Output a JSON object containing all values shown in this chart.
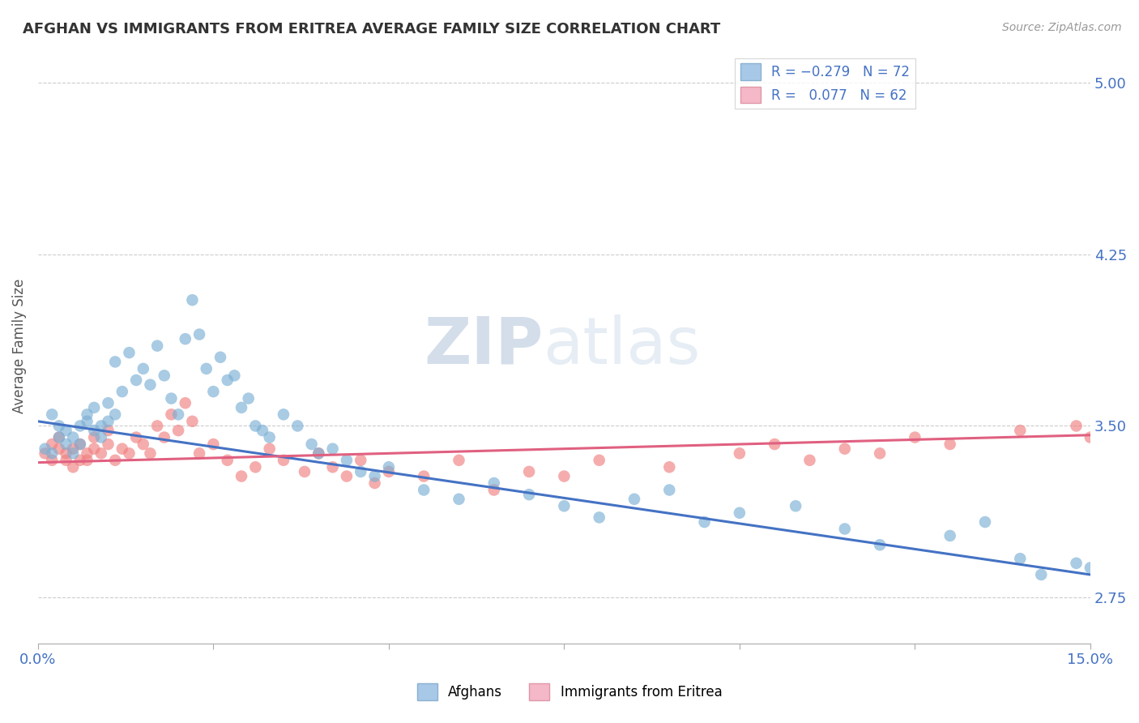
{
  "title": "AFGHAN VS IMMIGRANTS FROM ERITREA AVERAGE FAMILY SIZE CORRELATION CHART",
  "source": "Source: ZipAtlas.com",
  "ylabel": "Average Family Size",
  "xlim": [
    0.0,
    0.15
  ],
  "ylim": [
    2.55,
    5.15
  ],
  "yticks": [
    2.75,
    3.5,
    4.25,
    5.0
  ],
  "background_color": "#ffffff",
  "grid_color": "#cccccc",
  "afghans_color": "#7bafd4",
  "eritrea_color": "#f08080",
  "afghans_line_color": "#4472c4",
  "eritrea_line_color": "#e06080",
  "afghans_x": [
    0.001,
    0.002,
    0.002,
    0.003,
    0.003,
    0.004,
    0.004,
    0.005,
    0.005,
    0.006,
    0.006,
    0.007,
    0.007,
    0.008,
    0.008,
    0.009,
    0.009,
    0.01,
    0.01,
    0.011,
    0.011,
    0.012,
    0.013,
    0.014,
    0.015,
    0.016,
    0.017,
    0.018,
    0.019,
    0.02,
    0.021,
    0.022,
    0.023,
    0.024,
    0.025,
    0.026,
    0.027,
    0.028,
    0.029,
    0.03,
    0.031,
    0.032,
    0.033,
    0.035,
    0.037,
    0.039,
    0.04,
    0.042,
    0.044,
    0.046,
    0.048,
    0.05,
    0.055,
    0.06,
    0.065,
    0.07,
    0.075,
    0.08,
    0.085,
    0.09,
    0.095,
    0.1,
    0.108,
    0.115,
    0.12,
    0.13,
    0.135,
    0.14,
    0.143,
    0.148,
    0.15,
    0.152
  ],
  "afghans_y": [
    3.4,
    3.38,
    3.55,
    3.45,
    3.5,
    3.42,
    3.48,
    3.38,
    3.45,
    3.42,
    3.5,
    3.52,
    3.55,
    3.58,
    3.48,
    3.5,
    3.45,
    3.6,
    3.52,
    3.55,
    3.78,
    3.65,
    3.82,
    3.7,
    3.75,
    3.68,
    3.85,
    3.72,
    3.62,
    3.55,
    3.88,
    4.05,
    3.9,
    3.75,
    3.65,
    3.8,
    3.7,
    3.72,
    3.58,
    3.62,
    3.5,
    3.48,
    3.45,
    3.55,
    3.5,
    3.42,
    3.38,
    3.4,
    3.35,
    3.3,
    3.28,
    3.32,
    3.22,
    3.18,
    3.25,
    3.2,
    3.15,
    3.1,
    3.18,
    3.22,
    3.08,
    3.12,
    3.15,
    3.05,
    2.98,
    3.02,
    3.08,
    2.92,
    2.85,
    2.9,
    2.88,
    2.82
  ],
  "eritrea_x": [
    0.001,
    0.002,
    0.002,
    0.003,
    0.003,
    0.004,
    0.004,
    0.005,
    0.005,
    0.006,
    0.006,
    0.007,
    0.007,
    0.008,
    0.008,
    0.009,
    0.01,
    0.01,
    0.011,
    0.012,
    0.013,
    0.014,
    0.015,
    0.016,
    0.017,
    0.018,
    0.019,
    0.02,
    0.021,
    0.022,
    0.023,
    0.025,
    0.027,
    0.029,
    0.031,
    0.033,
    0.035,
    0.038,
    0.04,
    0.042,
    0.044,
    0.046,
    0.048,
    0.05,
    0.055,
    0.06,
    0.065,
    0.07,
    0.075,
    0.08,
    0.09,
    0.1,
    0.105,
    0.11,
    0.115,
    0.12,
    0.125,
    0.13,
    0.14,
    0.148,
    0.15,
    0.152
  ],
  "eritrea_y": [
    3.38,
    3.35,
    3.42,
    3.4,
    3.45,
    3.35,
    3.38,
    3.32,
    3.4,
    3.35,
    3.42,
    3.38,
    3.35,
    3.45,
    3.4,
    3.38,
    3.42,
    3.48,
    3.35,
    3.4,
    3.38,
    3.45,
    3.42,
    3.38,
    3.5,
    3.45,
    3.55,
    3.48,
    3.6,
    3.52,
    3.38,
    3.42,
    3.35,
    3.28,
    3.32,
    3.4,
    3.35,
    3.3,
    3.38,
    3.32,
    3.28,
    3.35,
    3.25,
    3.3,
    3.28,
    3.35,
    3.22,
    3.3,
    3.28,
    3.35,
    3.32,
    3.38,
    3.42,
    3.35,
    3.4,
    3.38,
    3.45,
    3.42,
    3.48,
    3.5,
    3.45,
    3.38
  ],
  "afg_line_x0": 0.0,
  "afg_line_y0": 3.52,
  "afg_line_x1": 0.15,
  "afg_line_y1": 2.85,
  "eri_line_x0": 0.0,
  "eri_line_y0": 3.34,
  "eri_line_x1": 0.15,
  "eri_line_y1": 3.46
}
